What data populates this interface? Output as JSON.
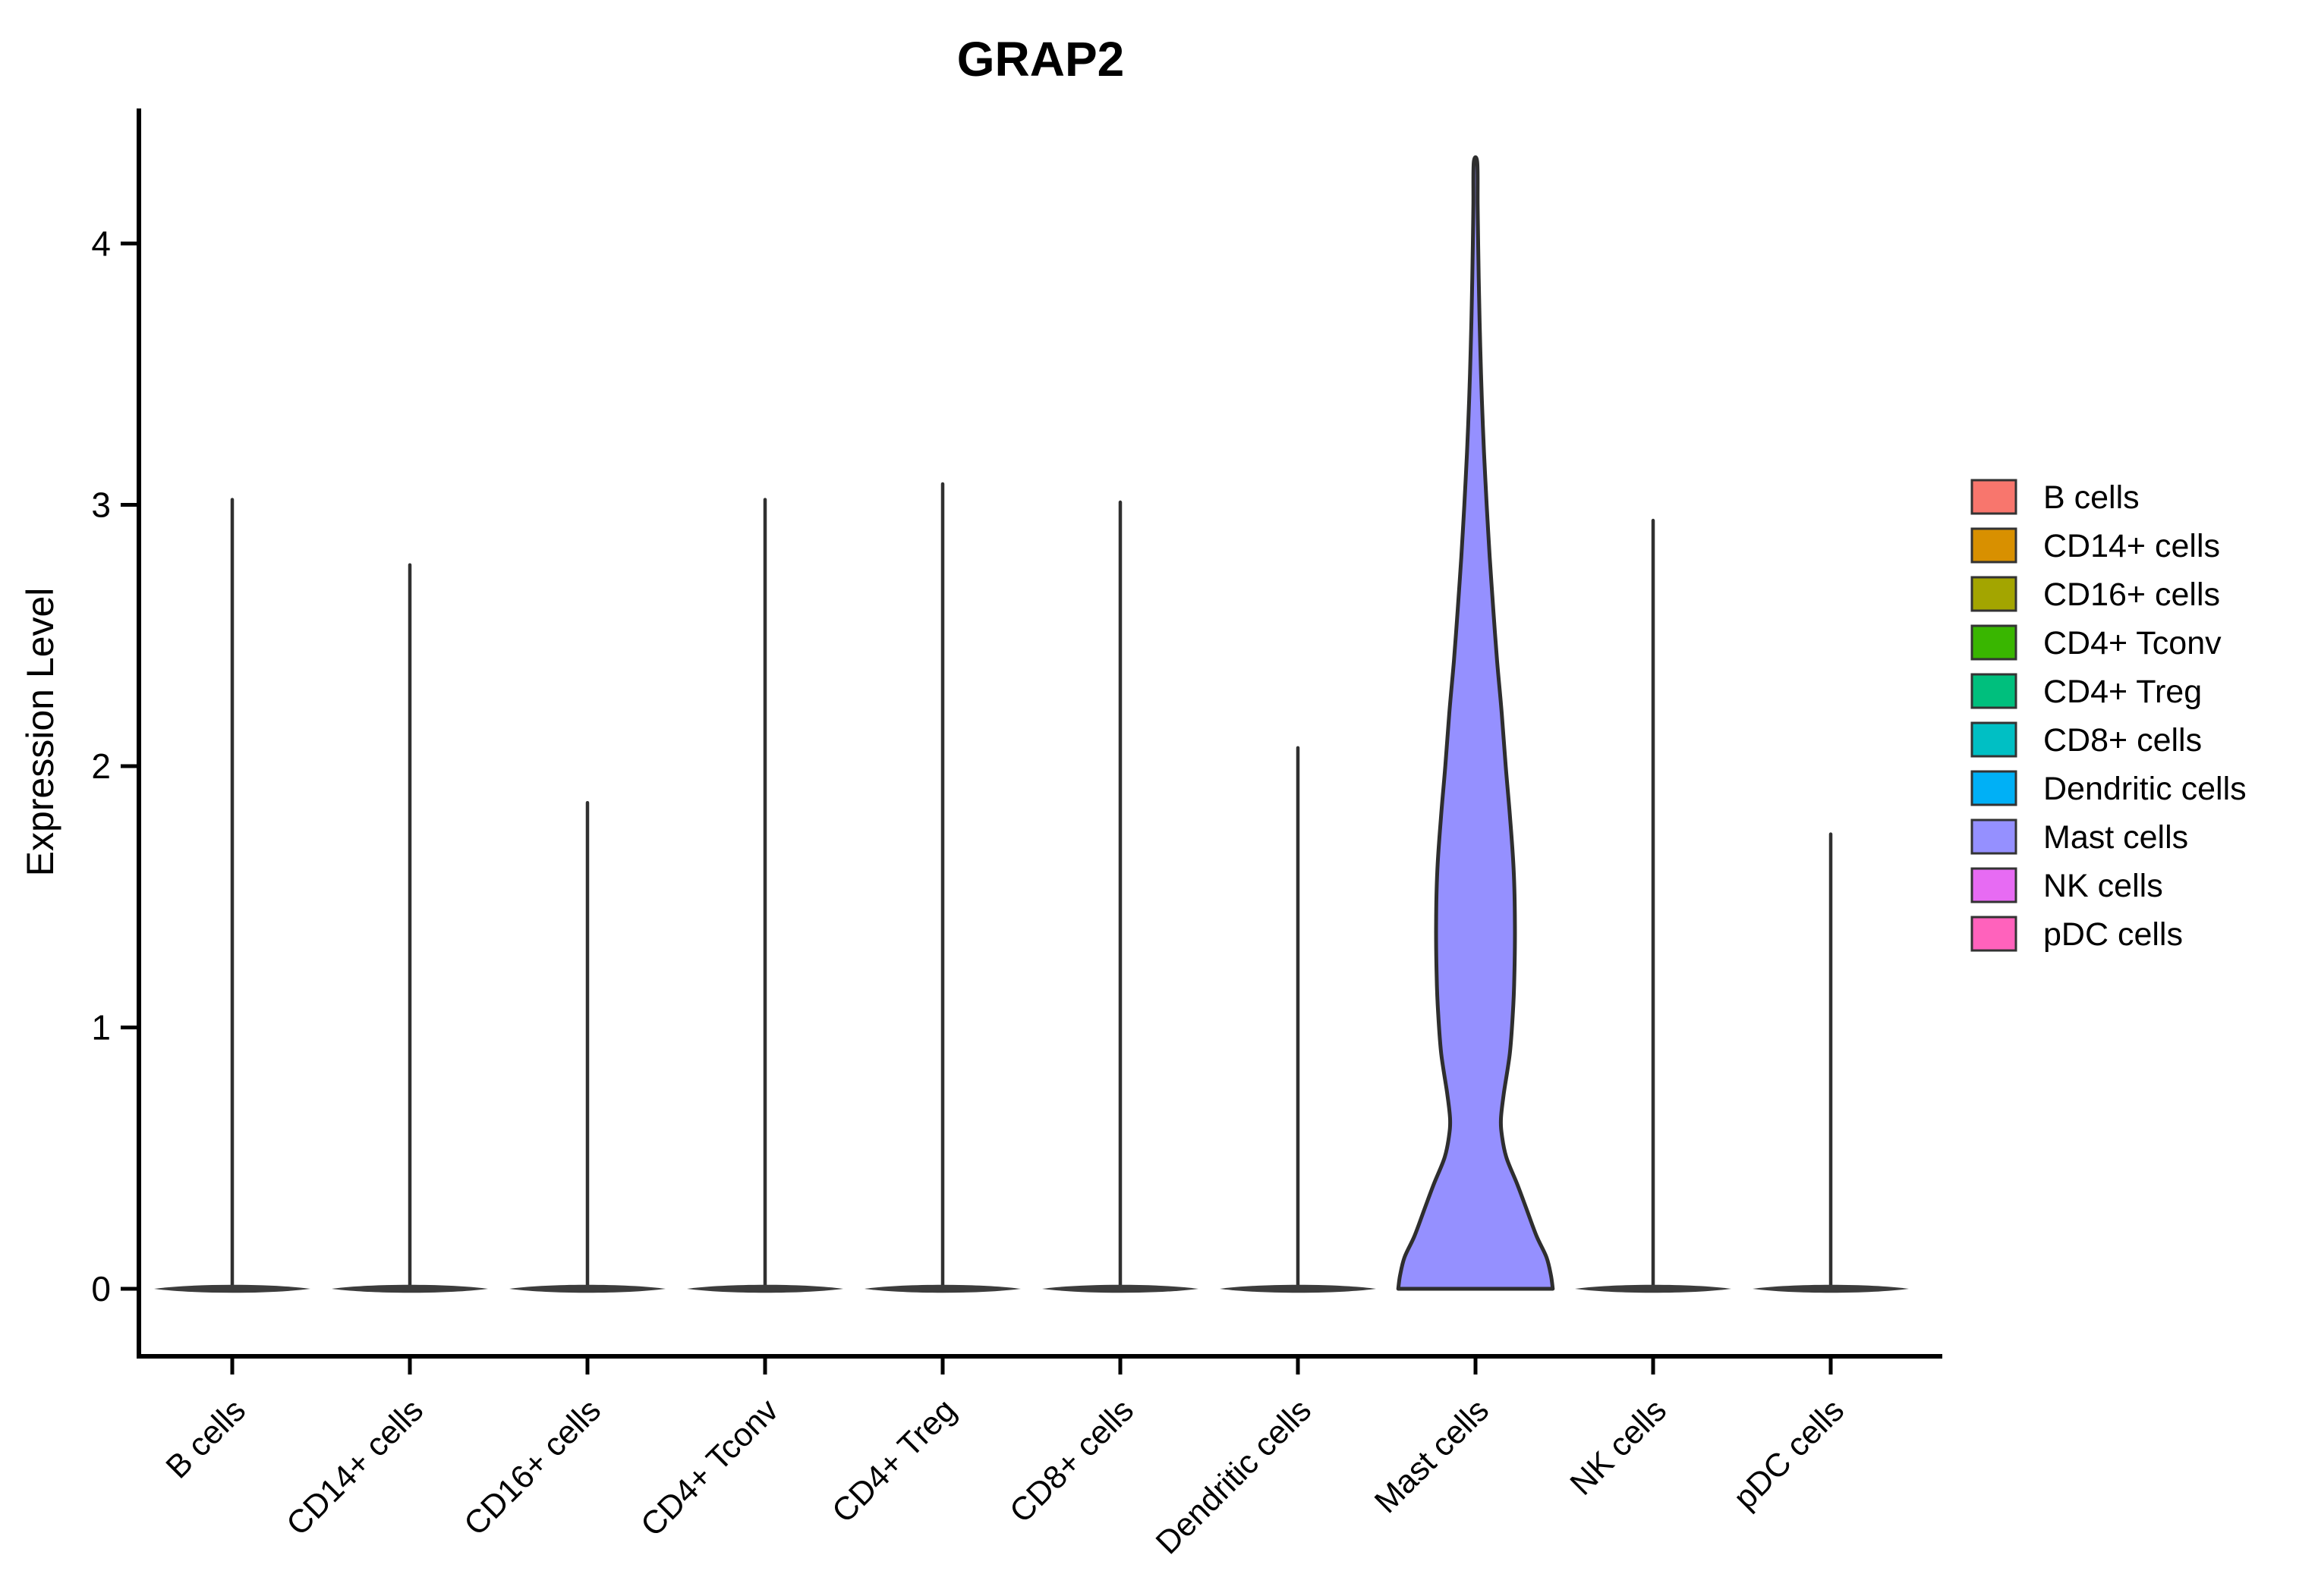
{
  "title": "GRAP2",
  "chart_data": {
    "type": "violin",
    "title": "GRAP2",
    "xlabel": "",
    "ylabel": "Expression Level",
    "ylim": [
      -0.26,
      4.52
    ],
    "y_ticks": [
      0,
      1,
      2,
      3,
      4
    ],
    "grid": false,
    "legend_position": "right",
    "categories": [
      "B cells",
      "CD14+ cells",
      "CD16+ cells",
      "CD4+ Tconv",
      "CD4+ Treg",
      "CD8+ cells",
      "Dendritic cells",
      "Mast cells",
      "NK cells",
      "pDC cells"
    ],
    "series": [
      {
        "name": "B cells",
        "color": "#F8766D",
        "max_expression": 3.02,
        "shape": "collapsed"
      },
      {
        "name": "CD14+ cells",
        "color": "#D89000",
        "max_expression": 2.77,
        "shape": "collapsed"
      },
      {
        "name": "CD16+ cells",
        "color": "#A3A500",
        "max_expression": 1.86,
        "shape": "collapsed"
      },
      {
        "name": "CD4+ Tconv",
        "color": "#39B600",
        "max_expression": 3.02,
        "shape": "collapsed"
      },
      {
        "name": "CD4+ Treg",
        "color": "#00BF7D",
        "max_expression": 3.08,
        "shape": "collapsed"
      },
      {
        "name": "CD8+ cells",
        "color": "#00BFC4",
        "max_expression": 3.01,
        "shape": "collapsed"
      },
      {
        "name": "Dendritic cells",
        "color": "#00B0F6",
        "max_expression": 2.07,
        "shape": "collapsed"
      },
      {
        "name": "Mast cells",
        "color": "#9590FF",
        "max_expression": 4.31,
        "shape": "full",
        "violin_profile": [
          [
            0.0,
            0.435
          ],
          [
            0.05,
            0.425
          ],
          [
            0.12,
            0.4
          ],
          [
            0.2,
            0.345
          ],
          [
            0.3,
            0.29
          ],
          [
            0.4,
            0.235
          ],
          [
            0.5,
            0.175
          ],
          [
            0.58,
            0.15
          ],
          [
            0.65,
            0.143
          ],
          [
            0.75,
            0.16
          ],
          [
            0.9,
            0.193
          ],
          [
            1.05,
            0.21
          ],
          [
            1.2,
            0.219
          ],
          [
            1.4,
            0.222
          ],
          [
            1.6,
            0.215
          ],
          [
            1.8,
            0.195
          ],
          [
            2.0,
            0.17
          ],
          [
            2.2,
            0.148
          ],
          [
            2.4,
            0.122
          ],
          [
            2.6,
            0.1
          ],
          [
            2.8,
            0.08
          ],
          [
            3.0,
            0.063
          ],
          [
            3.2,
            0.048
          ],
          [
            3.4,
            0.036
          ],
          [
            3.6,
            0.027
          ],
          [
            3.8,
            0.02
          ],
          [
            4.0,
            0.015
          ],
          [
            4.15,
            0.012
          ],
          [
            4.31,
            0.01
          ]
        ]
      },
      {
        "name": "NK cells",
        "color": "#E76BF3",
        "max_expression": 2.94,
        "shape": "collapsed"
      },
      {
        "name": "pDC cells",
        "color": "#FF62BC",
        "max_expression": 1.74,
        "shape": "collapsed"
      }
    ]
  },
  "legend": {
    "items": [
      {
        "label": "B cells",
        "color": "#F8766D"
      },
      {
        "label": "CD14+ cells",
        "color": "#D89000"
      },
      {
        "label": "CD16+ cells",
        "color": "#A3A500"
      },
      {
        "label": "CD4+ Tconv",
        "color": "#39B600"
      },
      {
        "label": "CD4+ Treg",
        "color": "#00BF7D"
      },
      {
        "label": "CD8+ cells",
        "color": "#00BFC4"
      },
      {
        "label": "Dendritic cells",
        "color": "#00B0F6"
      },
      {
        "label": "Mast cells",
        "color": "#9590FF"
      },
      {
        "label": "NK cells",
        "color": "#E76BF3"
      },
      {
        "label": "pDC cells",
        "color": "#FF62BC"
      }
    ]
  },
  "style": {
    "background": "#FFFFFF",
    "axis_color": "#000000",
    "violin_outline": "#2E2E2E",
    "collapsed_violin_color": "#3C3C3C",
    "spike_color": "#303030",
    "legend_key_border": "#333333",
    "text_color": "#000000"
  }
}
